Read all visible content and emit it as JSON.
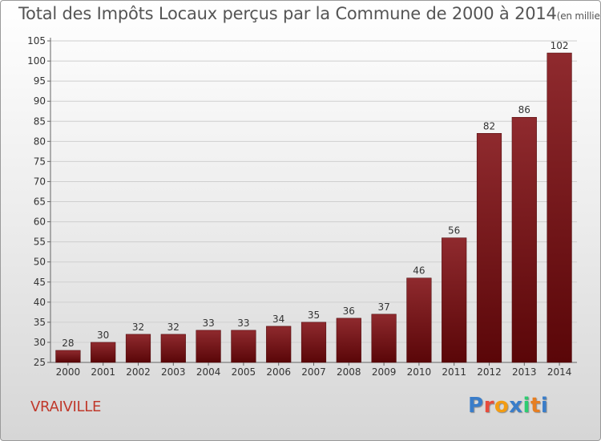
{
  "header": {
    "title": "Total des Impôts Locaux perçus par la Commune de 2000 à 2014",
    "unit": "(en milliers d'€)"
  },
  "footer": {
    "commune": "VRAIVILLE",
    "logo_letters": [
      "P",
      "r",
      "o",
      "x",
      "i",
      "t",
      "i"
    ],
    "logo_colors": [
      "#3a7dc9",
      "#e74c3c",
      "#f39c12",
      "#3a7dc9",
      "#2ecc71",
      "#e67e22",
      "#3a7dc9"
    ]
  },
  "chart_data": {
    "type": "bar",
    "categories": [
      "2000",
      "2001",
      "2002",
      "2003",
      "2004",
      "2005",
      "2006",
      "2007",
      "2008",
      "2009",
      "2010",
      "2011",
      "2012",
      "2013",
      "2014"
    ],
    "values": [
      28,
      30,
      32,
      32,
      33,
      33,
      34,
      35,
      36,
      37,
      46,
      56,
      82,
      86,
      102
    ],
    "ylim": [
      25,
      105
    ],
    "yticks": [
      25,
      30,
      35,
      40,
      45,
      50,
      55,
      60,
      65,
      70,
      75,
      80,
      85,
      90,
      95,
      100,
      105
    ],
    "grid": true,
    "bar_color": "#7a1418"
  }
}
